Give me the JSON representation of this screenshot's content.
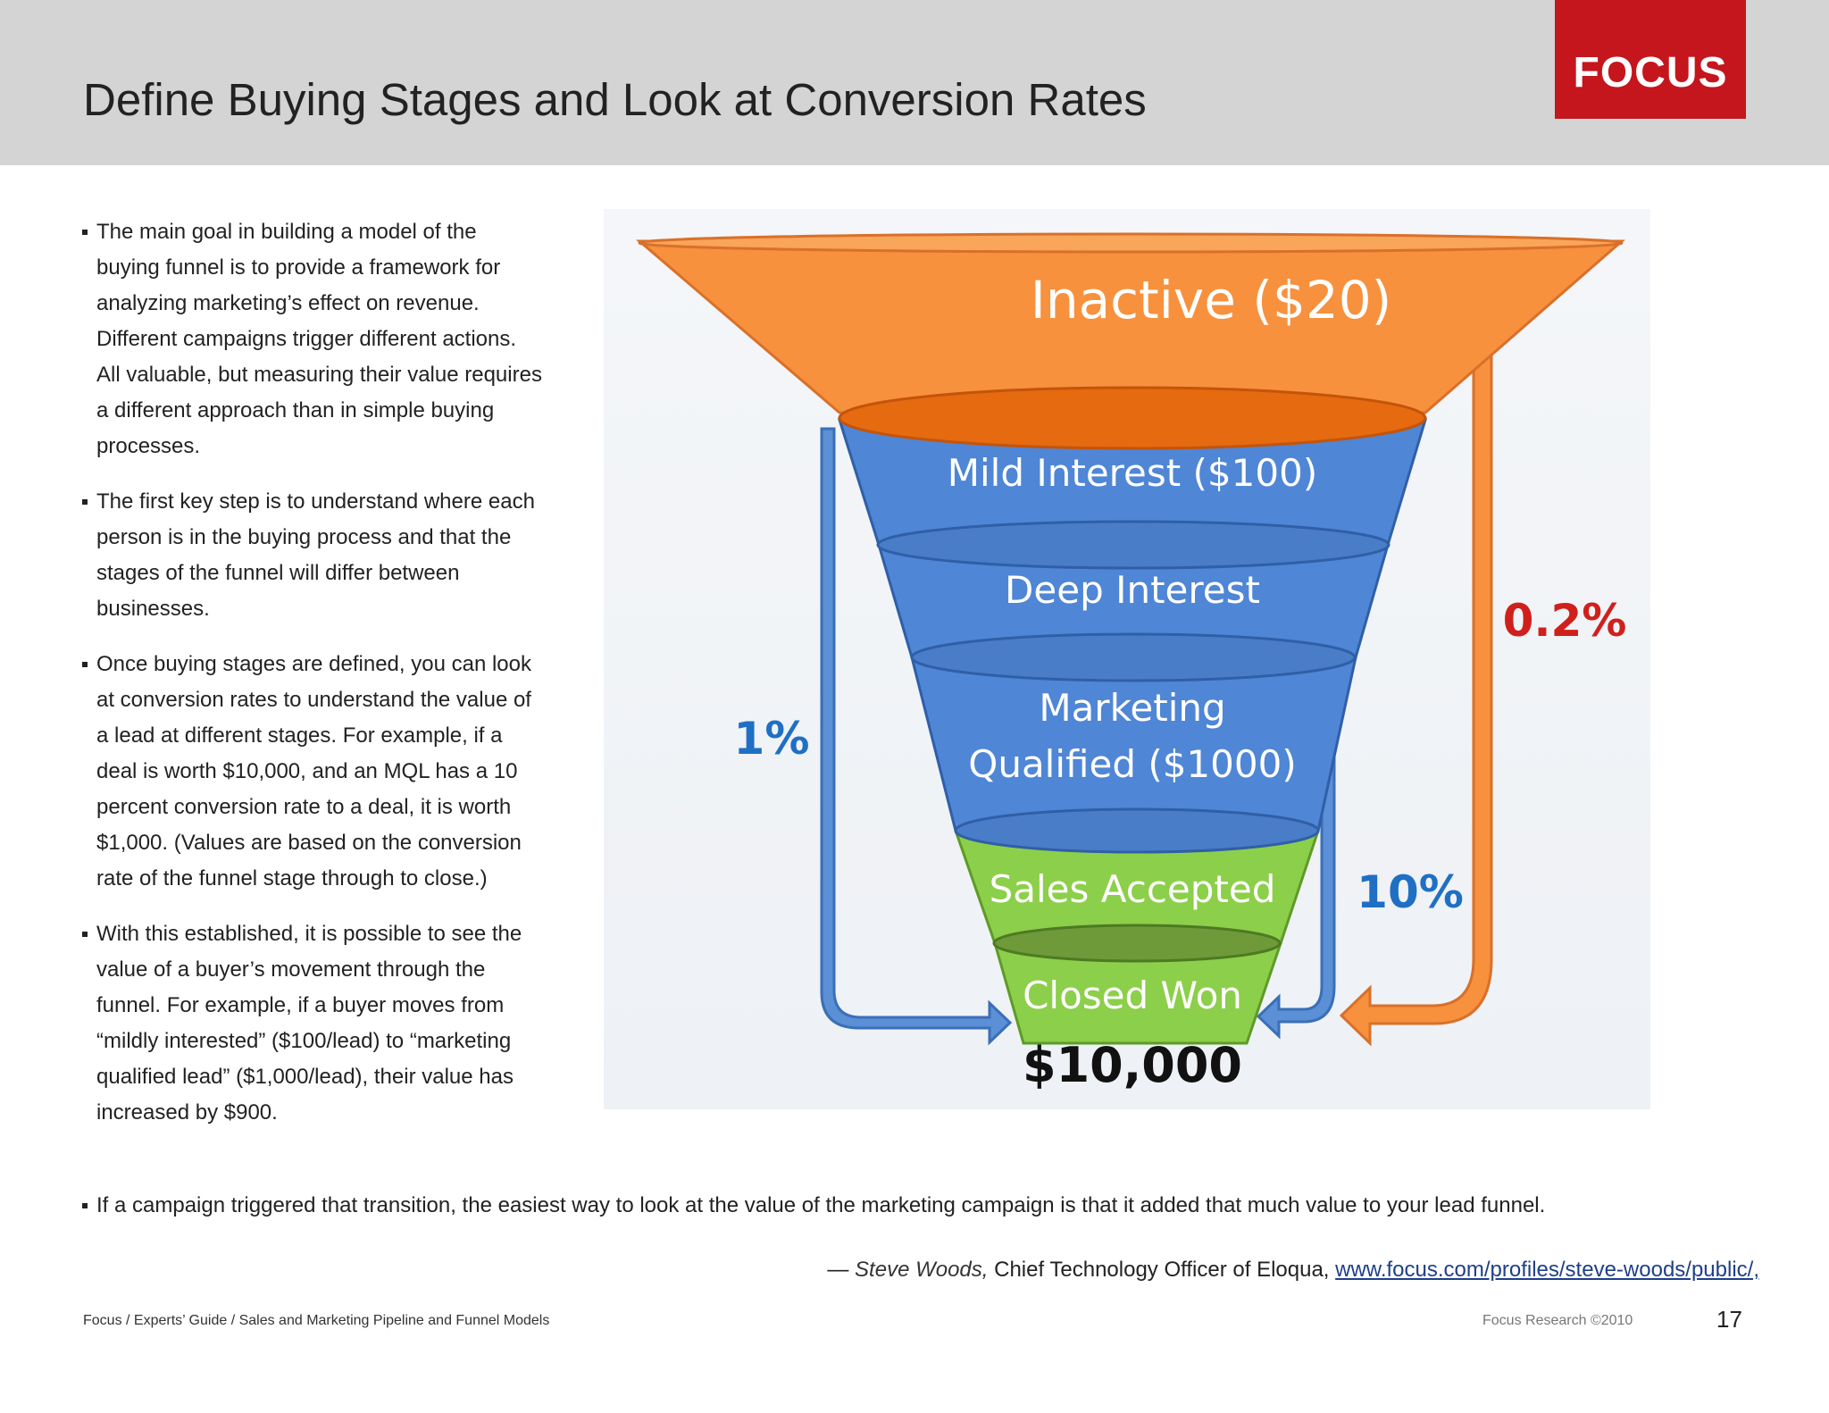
{
  "header": {
    "title": "Define Buying Stages and Look at Conversion Rates",
    "logo_text": "FOCUS",
    "logo_color": "#c4161c"
  },
  "bullets": [
    "The main goal in building a model of the buying funnel is to provide a framework for analyzing marketing’s effect on revenue. Different campaigns trigger different actions. All valuable, but measuring their value requires a different approach than in simple buying processes.",
    "The first key step is to understand where each person is in the buying process and that the stages of the funnel will differ between businesses.",
    "Once buying stages are defined, you can look at conversion rates to understand the value of a lead at different stages. For example, if a deal is worth $10,000, and an MQL has a 10 percent conversion rate to a deal, it is worth $1,000. (Values are based on the conversion rate of the funnel stage through to close.)",
    "With this established, it is possible to see the value of a buyer’s movement through the funnel. For example, if a buyer moves from “mildly interested” ($100/lead) to “marketing qualified lead” ($1,000/lead), their value has increased by $900."
  ],
  "bullet_wide": "If a campaign triggered that transition, the easiest way to look at the value of the marketing campaign is that it added that much value to your lead funnel.",
  "quote": {
    "dash": "— ",
    "author": "Steve Woods,",
    "role": " Chief Technology Officer of Eloqua, ",
    "link": "www.focus.com/profiles/steve-woods/public/,"
  },
  "funnel": {
    "stages": {
      "inactive": "Inactive ($20)",
      "mild": "Mild Interest ($100)",
      "deep": "Deep Interest",
      "mql_line1": "Marketing",
      "mql_line2": "Qualified ($1000)",
      "sales": "Sales Accepted",
      "closed": "Closed Won"
    },
    "deal_value": "$10,000",
    "rates": {
      "mild_to_closed": "1%",
      "inactive_to_closed": "0.2%",
      "mql_to_closed": "10%"
    },
    "colors": {
      "orange": "#f7913d",
      "blue": "#4f86d6",
      "green": "#8ccf4a",
      "rate_blue": "#1f6fc5",
      "rate_red": "#d0201c"
    }
  },
  "footer": {
    "breadcrumb": "Focus  /  Experts’ Guide  /  Sales and Marketing Pipeline and Funnel Models",
    "copyright": "Focus Research   ©2010",
    "page": "17"
  }
}
